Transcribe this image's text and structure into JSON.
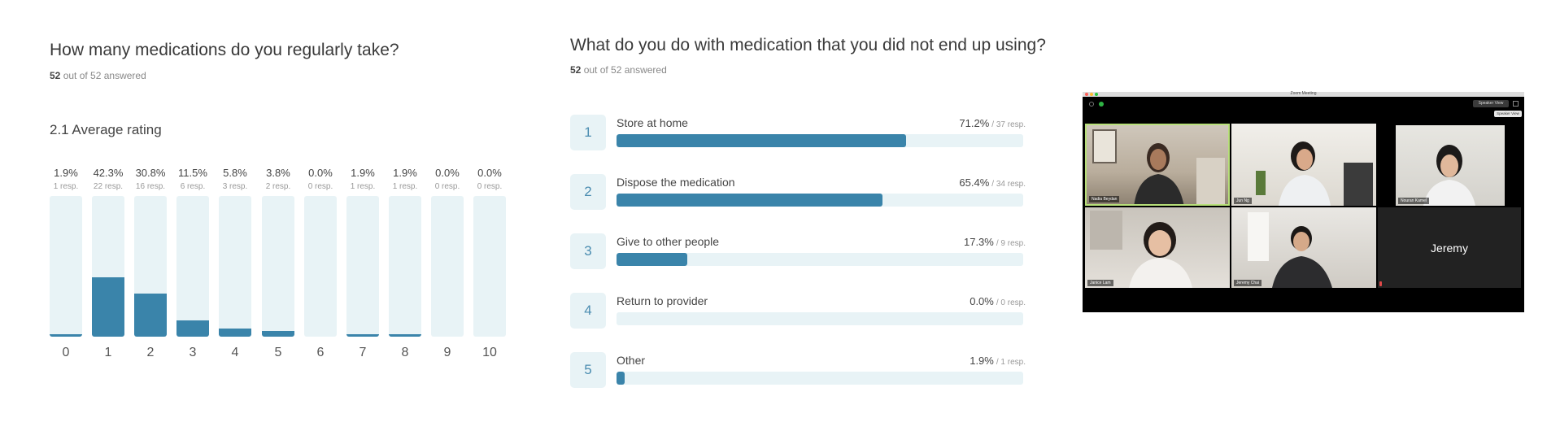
{
  "colors": {
    "bar_fill": "#3a84aa",
    "bar_track": "#e8f3f6",
    "number_box_text": "#4a8cb0",
    "meeting_background": "#000000",
    "active_speaker_border": "#b8e07a"
  },
  "chart_data": [
    {
      "type": "bar",
      "orientation": "vertical",
      "title": "How many medications do you regularly take?",
      "answered": {
        "count": "52",
        "suffix": " out of 52 answered"
      },
      "summary": "2.1 Average rating",
      "categories": [
        "0",
        "1",
        "2",
        "3",
        "4",
        "5",
        "6",
        "7",
        "8",
        "9",
        "10"
      ],
      "values": [
        1.9,
        42.3,
        30.8,
        11.5,
        5.8,
        3.8,
        0.0,
        1.9,
        1.9,
        0.0,
        0.0
      ],
      "value_labels": [
        "1.9%",
        "42.3%",
        "30.8%",
        "11.5%",
        "5.8%",
        "3.8%",
        "0.0%",
        "1.9%",
        "1.9%",
        "0.0%",
        "0.0%"
      ],
      "responses": [
        "1 resp.",
        "22 resp.",
        "16 resp.",
        "6 resp.",
        "3 resp.",
        "2 resp.",
        "0 resp.",
        "1 resp.",
        "1 resp.",
        "0 resp.",
        "0 resp."
      ],
      "ylim": [
        0,
        100
      ]
    },
    {
      "type": "bar",
      "orientation": "horizontal",
      "title": "What do you do with medication that you did not end up using?",
      "answered": {
        "count": "52",
        "suffix": " out of 52 answered"
      },
      "numbers": [
        "1",
        "2",
        "3",
        "4",
        "5"
      ],
      "categories": [
        "Store at home",
        "Dispose the medication",
        "Give to other people",
        "Return to provider",
        "Other"
      ],
      "values": [
        71.2,
        65.4,
        17.3,
        0.0,
        1.9
      ],
      "value_labels": [
        "71.2%",
        "65.4%",
        "17.3%",
        "0.0%",
        "1.9%"
      ],
      "responses": [
        "/ 37 resp.",
        "/ 34 resp.",
        "/ 9 resp.",
        "/ 0 resp.",
        "/ 1 resp."
      ],
      "xlim": [
        0,
        100
      ]
    }
  ],
  "meeting": {
    "window_title": "Zoom Meeting",
    "speaker_view_button": "Speaker View",
    "speaker_view_tooltip": "Speaker View",
    "participants": [
      {
        "name": "Nadia Beydan",
        "active": true
      },
      {
        "name": "Jun Ng"
      },
      {
        "name": "Nouran Kamel"
      },
      {
        "name": "Janice Lam"
      },
      {
        "name": "Jeremy Chai"
      },
      {
        "name": "",
        "display_text": "Jeremy"
      }
    ]
  }
}
